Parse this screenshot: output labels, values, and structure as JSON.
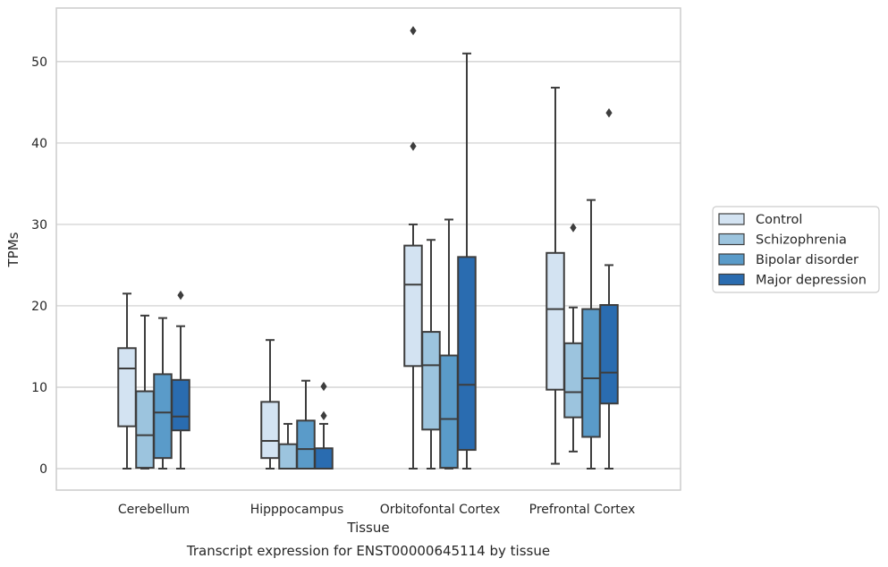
{
  "chart_data": {
    "type": "box",
    "title": "",
    "caption": "Transcript expression for ENST00000645114 by tissue",
    "xlabel": "Tissue",
    "ylabel": "TPMs",
    "ylim": [
      -2.5,
      56.0
    ],
    "yticks": [
      0,
      10,
      20,
      30,
      40,
      50
    ],
    "grid": "horizontal",
    "legend_position": "right",
    "categories": [
      "Cerebellum",
      "Hipppocampus",
      "Orbitofontal Cortex",
      "Prefrontal Cortex"
    ],
    "series": [
      {
        "name": "Control",
        "color": "#d3e3f2",
        "boxes": [
          {
            "whislo": 0.0,
            "q1": 5.2,
            "med": 12.3,
            "q3": 14.8,
            "whishi": 21.5,
            "fliers": []
          },
          {
            "whislo": 0.0,
            "q1": 1.3,
            "med": 3.4,
            "q3": 8.2,
            "whishi": 15.8,
            "fliers": []
          },
          {
            "whislo": 0.0,
            "q1": 12.6,
            "med": 22.6,
            "q3": 27.4,
            "whishi": 30.0,
            "fliers": [
              53.8,
              39.6
            ]
          },
          {
            "whislo": 0.6,
            "q1": 9.7,
            "med": 19.6,
            "q3": 26.5,
            "whishi": 46.8,
            "fliers": []
          }
        ]
      },
      {
        "name": "Schizophrenia",
        "color": "#9cc4de",
        "boxes": [
          {
            "whislo": 0.0,
            "q1": 0.1,
            "med": 4.1,
            "q3": 9.5,
            "whishi": 18.8,
            "fliers": []
          },
          {
            "whislo": 0.0,
            "q1": 0.0,
            "med": 0.0,
            "q3": 3.0,
            "whishi": 5.5,
            "fliers": []
          },
          {
            "whislo": 0.0,
            "q1": 4.8,
            "med": 12.7,
            "q3": 16.8,
            "whishi": 28.1,
            "fliers": []
          },
          {
            "whislo": 2.1,
            "q1": 6.3,
            "med": 9.4,
            "q3": 15.4,
            "whishi": 19.8,
            "fliers": [
              29.6
            ]
          }
        ]
      },
      {
        "name": "Bipolar disorder",
        "color": "#5a9bc9",
        "boxes": [
          {
            "whislo": 0.0,
            "q1": 1.3,
            "med": 6.9,
            "q3": 11.6,
            "whishi": 18.5,
            "fliers": []
          },
          {
            "whislo": 0.0,
            "q1": 0.0,
            "med": 2.4,
            "q3": 5.9,
            "whishi": 10.8,
            "fliers": []
          },
          {
            "whislo": 0.0,
            "q1": 0.1,
            "med": 6.1,
            "q3": 13.9,
            "whishi": 30.6,
            "fliers": []
          },
          {
            "whislo": 0.0,
            "q1": 3.9,
            "med": 11.1,
            "q3": 19.6,
            "whishi": 33.0,
            "fliers": []
          }
        ]
      },
      {
        "name": "Major depression",
        "color": "#2a6cb0",
        "boxes": [
          {
            "whislo": 0.0,
            "q1": 4.7,
            "med": 6.4,
            "q3": 10.9,
            "whishi": 17.5,
            "fliers": [
              21.3
            ]
          },
          {
            "whislo": 0.0,
            "q1": 0.0,
            "med": 0.0,
            "q3": 2.5,
            "whishi": 5.5,
            "fliers": [
              10.1,
              6.5
            ]
          },
          {
            "whislo": 0.0,
            "q1": 2.3,
            "med": 10.3,
            "q3": 26.0,
            "whishi": 51.0,
            "fliers": []
          },
          {
            "whislo": 0.0,
            "q1": 8.0,
            "med": 11.8,
            "q3": 20.1,
            "whishi": 25.0,
            "fliers": [
              43.7
            ]
          }
        ]
      }
    ]
  }
}
